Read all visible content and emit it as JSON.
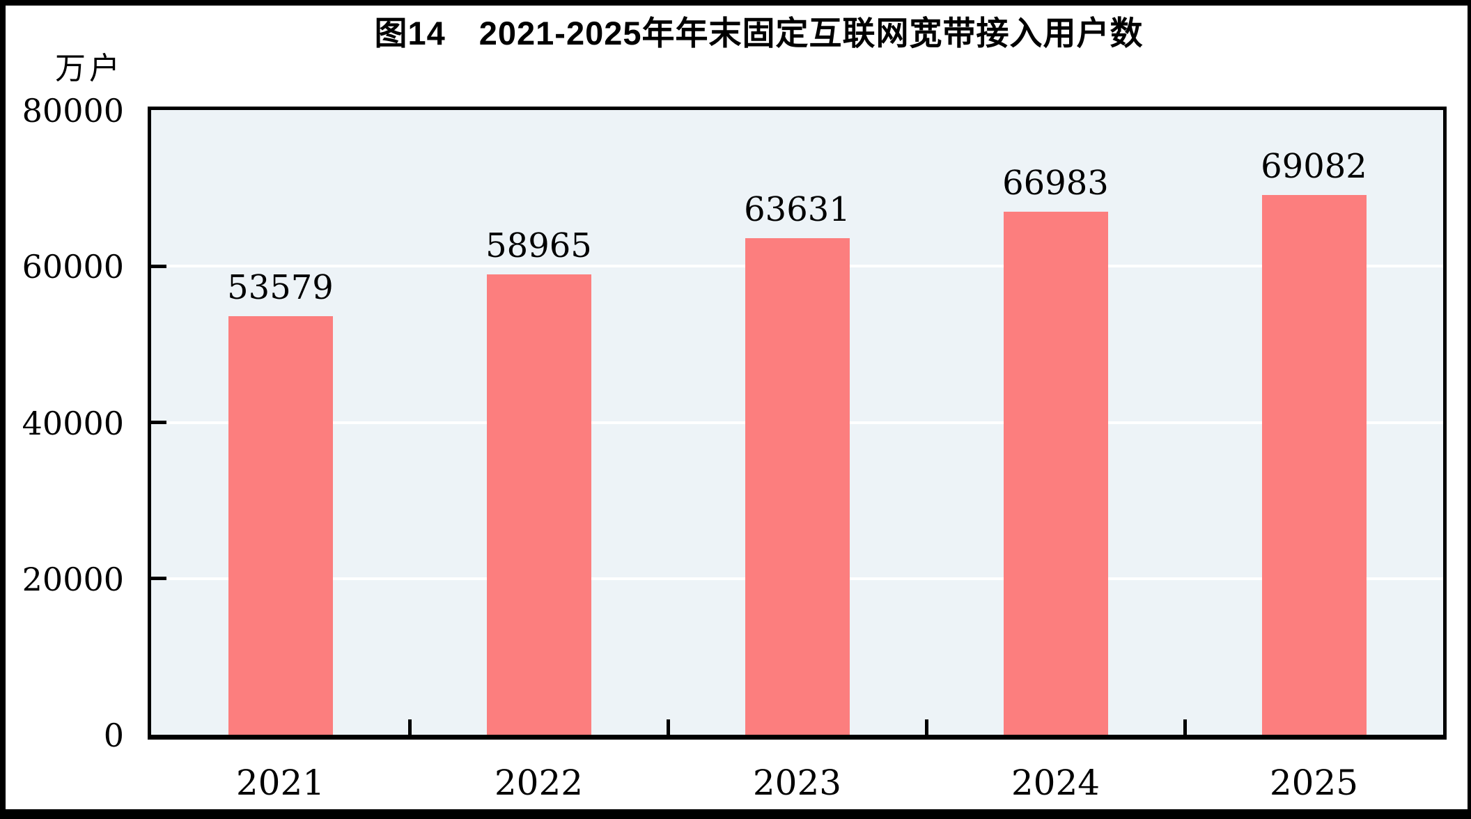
{
  "figure": {
    "frame_color": "#000000",
    "background": "#ffffff"
  },
  "chart_data": {
    "type": "bar",
    "title": "图14　2021-2025年年末固定互联网宽带接入用户数",
    "unit_label": "万户",
    "categories": [
      "2021",
      "2022",
      "2023",
      "2024",
      "2025"
    ],
    "values": [
      53579,
      58965,
      63631,
      66983,
      69082
    ],
    "data_labels": [
      "53579",
      "58965",
      "63631",
      "66983",
      "69082"
    ],
    "xlabel": "",
    "ylabel": "万户",
    "ylim": [
      0,
      80000
    ],
    "yticks": [
      0,
      20000,
      40000,
      60000,
      80000
    ],
    "ytick_labels": [
      "0",
      "20000",
      "40000",
      "60000",
      "80000"
    ],
    "grid": true,
    "gridlines_at": [
      20000,
      40000,
      60000
    ],
    "legend_position": "none",
    "colors": {
      "bar": "#fc7e7e",
      "plot_background": "#edf3f7",
      "gridline": "#ffffff",
      "axis": "#000000",
      "text": "#000000"
    }
  }
}
